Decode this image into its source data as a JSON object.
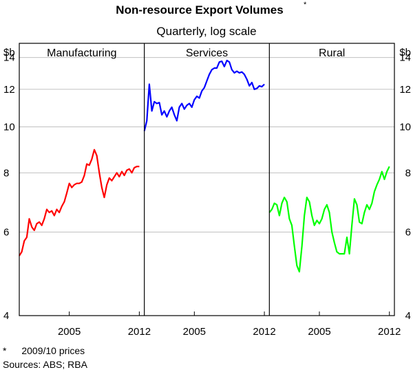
{
  "header": {
    "title": "Non-resource Export Volumes",
    "title_marker": "*",
    "subtitle": "Quarterly, log scale"
  },
  "footer": {
    "note_marker": "*",
    "note_text": "2009/10 prices",
    "sources": "Sources: ABS; RBA"
  },
  "chart_data": {
    "type": "line",
    "y_scale": "log",
    "ylim": [
      4,
      15
    ],
    "y_ticks": [
      4,
      6,
      8,
      10,
      12,
      14
    ],
    "y_unit_left": "$b",
    "y_unit_right": "$b",
    "xlim": [
      2000.0,
      2012.5
    ],
    "x_ticks": [
      2005,
      2012
    ],
    "x_tick_labels": [
      "2005",
      "2012"
    ],
    "grid": true,
    "panels": [
      {
        "title": "Manufacturing",
        "color": "#ff0000",
        "x": [
          2000.0,
          2000.25,
          2000.5,
          2000.75,
          2001.0,
          2001.25,
          2001.5,
          2001.75,
          2002.0,
          2002.25,
          2002.5,
          2002.75,
          2003.0,
          2003.25,
          2003.5,
          2003.75,
          2004.0,
          2004.25,
          2004.5,
          2004.75,
          2005.0,
          2005.25,
          2005.5,
          2005.75,
          2006.0,
          2006.25,
          2006.5,
          2006.75,
          2007.0,
          2007.25,
          2007.5,
          2007.75,
          2008.0,
          2008.25,
          2008.5,
          2008.75,
          2009.0,
          2009.25,
          2009.5,
          2009.75,
          2010.0,
          2010.25,
          2010.5,
          2010.75,
          2011.0,
          2011.25,
          2011.5,
          2011.75,
          2012.0
        ],
        "values": [
          5.35,
          5.45,
          5.75,
          5.85,
          6.4,
          6.15,
          6.05,
          6.25,
          6.3,
          6.2,
          6.4,
          6.7,
          6.6,
          6.65,
          6.5,
          6.7,
          6.6,
          6.8,
          6.95,
          7.25,
          7.6,
          7.45,
          7.55,
          7.6,
          7.6,
          7.65,
          7.9,
          8.35,
          8.3,
          8.55,
          8.95,
          8.7,
          8.0,
          7.45,
          7.1,
          7.55,
          7.8,
          7.7,
          7.85,
          8.0,
          7.85,
          8.05,
          7.9,
          8.1,
          8.15,
          8.0,
          8.2,
          8.25,
          8.25
        ]
      },
      {
        "title": "Services",
        "color": "#0000ff",
        "x": [
          2000.0,
          2000.25,
          2000.5,
          2000.75,
          2001.0,
          2001.25,
          2001.5,
          2001.75,
          2002.0,
          2002.25,
          2002.5,
          2002.75,
          2003.0,
          2003.25,
          2003.5,
          2003.75,
          2004.0,
          2004.25,
          2004.5,
          2004.75,
          2005.0,
          2005.25,
          2005.5,
          2005.75,
          2006.0,
          2006.25,
          2006.5,
          2006.75,
          2007.0,
          2007.25,
          2007.5,
          2007.75,
          2008.0,
          2008.25,
          2008.5,
          2008.75,
          2009.0,
          2009.25,
          2009.5,
          2009.75,
          2010.0,
          2010.25,
          2010.5,
          2010.75,
          2011.0,
          2011.25,
          2011.5,
          2011.75,
          2012.0
        ],
        "values": [
          9.8,
          10.3,
          12.3,
          10.8,
          11.3,
          11.2,
          11.25,
          10.6,
          10.8,
          10.5,
          10.8,
          11.0,
          10.6,
          10.3,
          11.0,
          11.2,
          10.9,
          11.1,
          11.2,
          11.0,
          11.4,
          11.6,
          11.5,
          11.9,
          12.1,
          12.5,
          12.9,
          13.2,
          13.3,
          13.3,
          13.7,
          13.75,
          13.4,
          13.8,
          13.7,
          13.2,
          13.0,
          13.1,
          13.0,
          13.05,
          12.9,
          12.6,
          12.2,
          12.4,
          12.0,
          12.05,
          12.2,
          12.15,
          12.3
        ]
      },
      {
        "title": "Rural",
        "color": "#00ff00",
        "x": [
          2000.0,
          2000.25,
          2000.5,
          2000.75,
          2001.0,
          2001.25,
          2001.5,
          2001.75,
          2002.0,
          2002.25,
          2002.5,
          2002.75,
          2003.0,
          2003.25,
          2003.5,
          2003.75,
          2004.0,
          2004.25,
          2004.5,
          2004.75,
          2005.0,
          2005.25,
          2005.5,
          2005.75,
          2006.0,
          2006.25,
          2006.5,
          2006.75,
          2007.0,
          2007.25,
          2007.5,
          2007.75,
          2008.0,
          2008.25,
          2008.5,
          2008.75,
          2009.0,
          2009.25,
          2009.5,
          2009.75,
          2010.0,
          2010.25,
          2010.5,
          2010.75,
          2011.0,
          2011.25,
          2011.5,
          2011.75,
          2012.0
        ],
        "values": [
          6.6,
          6.7,
          6.9,
          6.85,
          6.5,
          6.9,
          7.1,
          6.95,
          6.4,
          6.2,
          5.6,
          5.1,
          4.95,
          5.6,
          6.5,
          7.1,
          6.95,
          6.5,
          6.2,
          6.35,
          6.25,
          6.4,
          6.7,
          6.85,
          6.6,
          6.0,
          5.7,
          5.45,
          5.4,
          5.4,
          5.4,
          5.85,
          5.4,
          6.2,
          7.05,
          6.85,
          6.3,
          6.25,
          6.6,
          6.85,
          6.7,
          6.9,
          7.3,
          7.55,
          7.75,
          8.05,
          7.75,
          8.05,
          8.25
        ]
      }
    ]
  }
}
